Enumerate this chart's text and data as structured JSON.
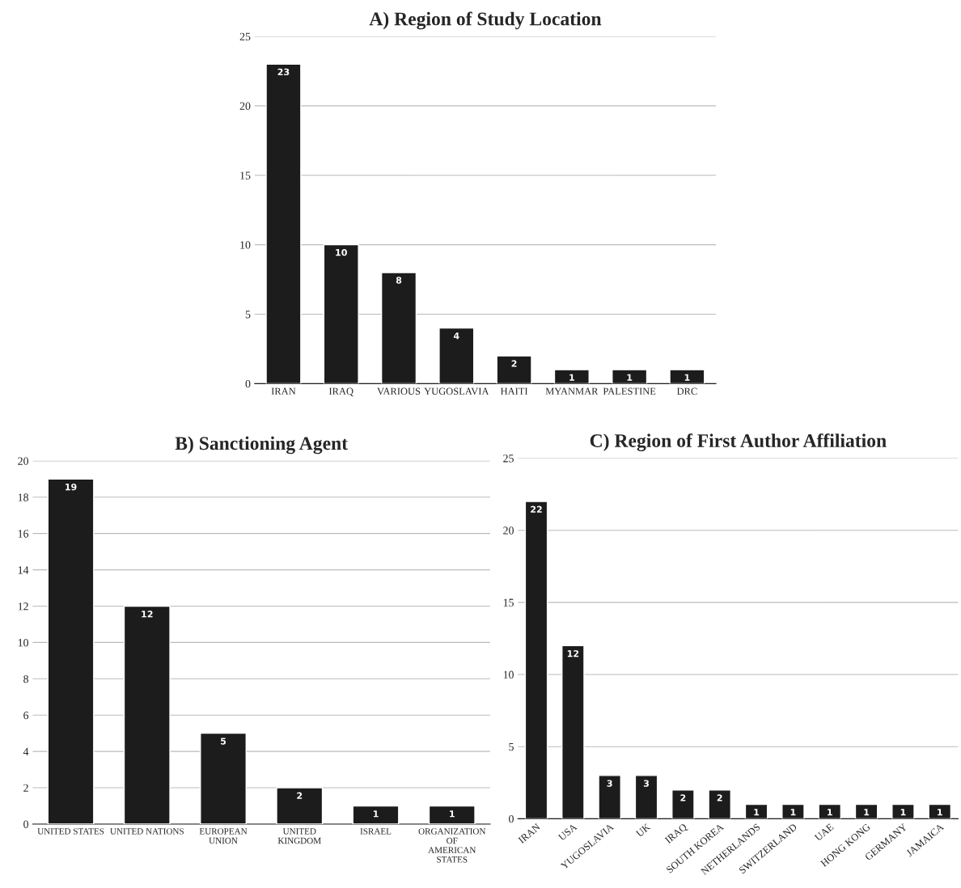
{
  "chart_data": [
    {
      "type": "bar",
      "title": "A) Region of Study Location",
      "categories": [
        "IRAN",
        "IRAQ",
        "VARIOUS",
        "YUGOSLAVIA",
        "HAITI",
        "MYANMAR",
        "PALESTINE",
        "DRC"
      ],
      "values": [
        23,
        10,
        8,
        4,
        2,
        1,
        1,
        1
      ],
      "color": "#1c1c1c",
      "ylim": [
        0,
        25
      ],
      "yticks": [
        0,
        5,
        10,
        15,
        20,
        25
      ],
      "grid": "y",
      "data_labels": true
    },
    {
      "type": "bar",
      "title": "B) Sanctioning Agent",
      "categories": [
        "UNITED STATES",
        "UNITED NATIONS",
        "EUROPEAN\nUNION",
        "UNITED\nKINGDOM",
        "ISRAEL",
        "ORGANIZATION\nOF\nAMERICAN\nSTATES"
      ],
      "values": [
        19,
        12,
        5,
        2,
        1,
        1
      ],
      "color": "#1c1c1c",
      "ylim": [
        0,
        20
      ],
      "yticks": [
        0,
        2,
        4,
        6,
        8,
        10,
        12,
        14,
        16,
        18,
        20
      ],
      "grid": "y",
      "data_labels": true
    },
    {
      "type": "bar",
      "title": "C) Region of First Author Affiliation",
      "categories": [
        "IRAN",
        "USA",
        "YUGOSLAVIA",
        "UK",
        "IRAQ",
        "SOUTH KOREA",
        "NETHERLANDS",
        "SWITZERLAND",
        "UAE",
        "HONG KONG",
        "GERMANY",
        "JAMAICA"
      ],
      "values": [
        22,
        12,
        3,
        3,
        2,
        2,
        1,
        1,
        1,
        1,
        1,
        1
      ],
      "color": "#1c1c1c",
      "ylim": [
        0,
        25
      ],
      "yticks": [
        0,
        5,
        10,
        15,
        20,
        25
      ],
      "grid": "y",
      "data_labels": true
    }
  ]
}
